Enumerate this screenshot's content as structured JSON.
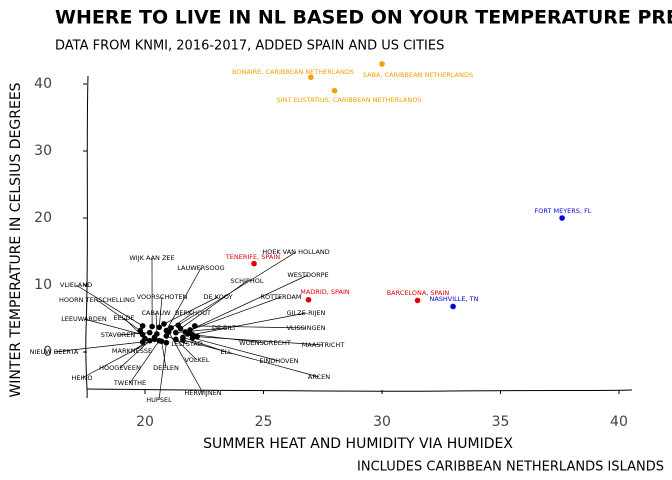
{
  "chart_data": {
    "type": "scatter",
    "title": "WHERE TO LIVE IN NL BASED ON YOUR TEMPERATURE PREFERENCES",
    "subtitle": "DATA FROM KNMI, 2016-2017, ADDED SPAIN AND US CITIES",
    "x_label": "SUMMER HEAT AND HUMIDITY VIA HUMIDEX",
    "y_label": "WINTER TEMPERATURE IN CELSIUS DEGREES",
    "caption": "INCLUDES CARIBBEAN NETHERLANDS ISLANDS",
    "xlim": [
      17.4,
      40.9
    ],
    "ylim": [
      -6.5,
      44
    ],
    "xticks": [
      20,
      25,
      30,
      35,
      40
    ],
    "yticks": [
      0,
      10,
      20,
      30,
      40
    ],
    "series": [
      {
        "color": "#f0a000",
        "labels": [
          "BONAIRE, CARIBBEAN NETHERLANDS",
          "SABA, CARIBBEAN NETHERLANDS",
          "SINT EUSTATIUS, CARIBBEAN NETHERLANDS"
        ],
        "x": [
          27,
          30,
          28
        ],
        "y": [
          41,
          43,
          39
        ]
      },
      {
        "color": "#e00000",
        "labels": [
          "TENERIFE, SPAIN",
          "MADRID, SPAIN",
          "BARCELONA, SPAIN"
        ],
        "x": [
          24.6,
          26.9,
          31.5
        ],
        "y": [
          13.2,
          7.8,
          7.7
        ]
      },
      {
        "color": "#0000e0",
        "labels": [
          "NASHVILLE, TN",
          "FORT MEYERS, FL"
        ],
        "x": [
          33,
          37.6
        ],
        "y": [
          6.8,
          20
        ]
      },
      {
        "color": "#000000",
        "labels": [
          "WIJK AAN ZEE",
          "LAUWERSOOG",
          "HOEK VAN HOLLAND",
          "SCHIPHOL",
          "WESTDORPE",
          "VLIELAND",
          "DE KOOY",
          "ROTTERDAM",
          "HOORN TERSCHELLING",
          "VOORSCHOTEN",
          "GILZE-RIJEN",
          "CABAUW",
          "BERKHOUT",
          "LEEUWARDEN",
          "EELDE",
          "DE BILT",
          "VLISSINGEN",
          "STAVOREN",
          "LELYSTAD",
          "WOENSDRECHT",
          "MAASTRICHT",
          "NIEUW BEERTA",
          "MARKNESSE",
          "ELL",
          "VOLKEL",
          "EINDHOVEN",
          "HOOGEVEEN",
          "DEELEN",
          "ARCEN",
          "HEINO",
          "TWENTHE",
          "HERWIJNEN",
          "HUPSEL"
        ],
        "x": [
          20.3,
          20.9,
          21.4,
          21.5,
          21.9,
          19.9,
          20.8,
          21.7,
          19.8,
          20.6,
          22.0,
          20.5,
          21.1,
          19.9,
          20.0,
          21.3,
          22.1,
          20.2,
          20.9,
          21.8,
          22.2,
          19.9,
          20.4,
          21.6,
          21.3,
          22.0,
          20.2,
          20.7,
          21.6,
          20.4,
          20.6,
          21.0,
          20.9
        ],
        "y": [
          3.8,
          3.2,
          4.0,
          3.5,
          3.3,
          3.9,
          4.2,
          3.0,
          3.2,
          3.7,
          2.6,
          2.7,
          3.6,
          2.6,
          2.0,
          2.9,
          3.9,
          2.9,
          2.4,
          2.7,
          2.3,
          1.5,
          2.2,
          2.2,
          1.9,
          2.1,
          1.7,
          1.6,
          1.8,
          1.9,
          1.7,
          3.0,
          1.4
        ]
      }
    ]
  }
}
